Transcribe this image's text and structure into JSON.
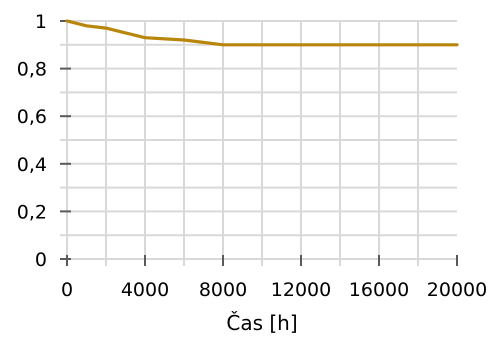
{
  "chart_data": {
    "type": "line",
    "title": "",
    "xlabel": "Čas [h]",
    "ylabel": "",
    "xlim": [
      0,
      20000
    ],
    "ylim": [
      0,
      1
    ],
    "x_ticks": [
      0,
      4000,
      8000,
      12000,
      16000,
      20000
    ],
    "x_tick_labels": [
      "0",
      "4000",
      "8000",
      "12000",
      "16000",
      "20000"
    ],
    "y_ticks": [
      0,
      0.2,
      0.4,
      0.6,
      0.8,
      1
    ],
    "y_tick_labels": [
      "0",
      "0,2",
      "0,4",
      "0,6",
      "0,8",
      "1"
    ],
    "grid": true,
    "legend": "none",
    "series": [
      {
        "color": "#b8860b",
        "x": [
          0,
          1000,
          2000,
          3000,
          4000,
          6000,
          8000,
          12000,
          16000,
          20000
        ],
        "y": [
          1,
          0.98,
          0.97,
          0.95,
          0.93,
          0.92,
          0.9,
          0.9,
          0.9,
          0.9
        ]
      }
    ],
    "colors": {
      "grid": "#d9d9d9",
      "axis": "#d9d9d9",
      "tick": "#595959",
      "line": "#b8860b"
    }
  }
}
